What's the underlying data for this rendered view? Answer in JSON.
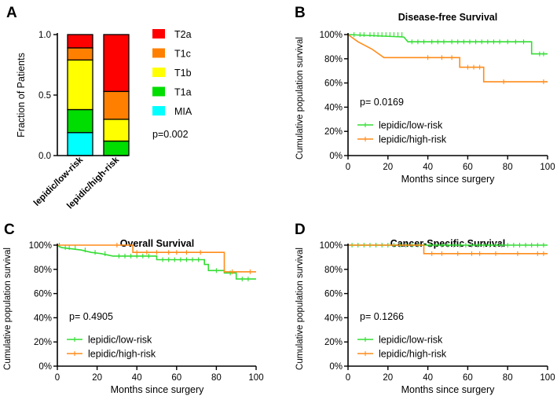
{
  "chart_data": [
    {
      "panel": "A",
      "type": "bar",
      "stacked": true,
      "title": "",
      "xlabel": "",
      "ylabel": "Fraction of Patients",
      "ylim": [
        0,
        1
      ],
      "yticks": [
        "0.0",
        "0.5",
        "1.0"
      ],
      "categories": [
        "lepidic/low-risk",
        "lepidic/high-risk"
      ],
      "series": [
        {
          "name": "MIA",
          "color": "#00ffff",
          "values": [
            0.19,
            0.0
          ]
        },
        {
          "name": "T1a",
          "color": "#00dd00",
          "values": [
            0.19,
            0.12
          ]
        },
        {
          "name": "T1b",
          "color": "#ffff00",
          "values": [
            0.41,
            0.18
          ]
        },
        {
          "name": "T1c",
          "color": "#ff8000",
          "values": [
            0.1,
            0.23
          ]
        },
        {
          "name": "T2a",
          "color": "#ff0000",
          "values": [
            0.11,
            0.47
          ]
        }
      ],
      "legend": [
        "T2a",
        "T1c",
        "T1b",
        "T1a",
        "MIA"
      ],
      "annotation": "p=0.002"
    },
    {
      "panel": "B",
      "type": "line",
      "title": "Disease-free Survival",
      "xlabel": "Months since surgery",
      "ylabel": "Cumulative population survival",
      "xlim": [
        0,
        100
      ],
      "ylim": [
        0,
        100
      ],
      "xticks": [
        "0",
        "20",
        "40",
        "60",
        "80",
        "100"
      ],
      "yticks": [
        "0%",
        "20%",
        "40%",
        "60%",
        "80%",
        "100%"
      ],
      "annotation": "p= 0.0169",
      "series": [
        {
          "name": "lepidic/low-risk",
          "color": "#33dd33",
          "steps": [
            [
              0,
              100
            ],
            [
              28,
              98
            ],
            [
              30,
              94
            ],
            [
              92,
              94
            ],
            [
              92,
              84
            ],
            [
              100,
              84
            ]
          ],
          "censors": [
            [
              3,
              100
            ],
            [
              6,
              100
            ],
            [
              8,
              100
            ],
            [
              11,
              100
            ],
            [
              13,
              100
            ],
            [
              15,
              100
            ],
            [
              17,
              100
            ],
            [
              19,
              100
            ],
            [
              21,
              100
            ],
            [
              23,
              100
            ],
            [
              25,
              100
            ],
            [
              27,
              100
            ],
            [
              32,
              94
            ],
            [
              35,
              94
            ],
            [
              38,
              94
            ],
            [
              42,
              94
            ],
            [
              45,
              94
            ],
            [
              48,
              94
            ],
            [
              52,
              94
            ],
            [
              55,
              94
            ],
            [
              58,
              94
            ],
            [
              61,
              94
            ],
            [
              64,
              94
            ],
            [
              67,
              94
            ],
            [
              70,
              94
            ],
            [
              73,
              94
            ],
            [
              76,
              94
            ],
            [
              80,
              94
            ],
            [
              84,
              94
            ],
            [
              88,
              94
            ],
            [
              96,
              84
            ],
            [
              98,
              84
            ]
          ]
        },
        {
          "name": "lepidic/high-risk",
          "color": "#ff8c1a",
          "steps": [
            [
              0,
              100
            ],
            [
              5,
              94
            ],
            [
              12,
              88
            ],
            [
              18,
              81
            ],
            [
              56,
              81
            ],
            [
              56,
              73
            ],
            [
              68,
              73
            ],
            [
              68,
              61
            ],
            [
              100,
              61
            ]
          ],
          "censors": [
            [
              40,
              81
            ],
            [
              47,
              81
            ],
            [
              52,
              81
            ],
            [
              60,
              73
            ],
            [
              63,
              73
            ],
            [
              66,
              73
            ],
            [
              78,
              61
            ],
            [
              98,
              61
            ]
          ]
        }
      ]
    },
    {
      "panel": "C",
      "type": "line",
      "title": "Overall Survival",
      "xlabel": "Months since surgery",
      "ylabel": "Cumulative population survival",
      "xlim": [
        0,
        100
      ],
      "ylim": [
        0,
        100
      ],
      "xticks": [
        "0",
        "20",
        "40",
        "60",
        "80",
        "100"
      ],
      "yticks": [
        "0%",
        "20%",
        "40%",
        "60%",
        "80%",
        "100%"
      ],
      "annotation": "p= 0.4905",
      "series": [
        {
          "name": "lepidic/low-risk",
          "color": "#33dd33",
          "steps": [
            [
              0,
              100
            ],
            [
              2,
              98
            ],
            [
              12,
              96
            ],
            [
              17,
              94
            ],
            [
              22,
              93
            ],
            [
              28,
              91
            ],
            [
              50,
              91
            ],
            [
              50,
              88
            ],
            [
              74,
              88
            ],
            [
              74,
              84
            ],
            [
              76,
              84
            ],
            [
              76,
              79
            ],
            [
              84,
              79
            ],
            [
              84,
              77
            ],
            [
              90,
              77
            ],
            [
              90,
              72
            ],
            [
              100,
              72
            ]
          ],
          "censors": [
            [
              1,
              100
            ],
            [
              4,
              98
            ],
            [
              6,
              98
            ],
            [
              9,
              98
            ],
            [
              14,
              96
            ],
            [
              19,
              94
            ],
            [
              24,
              93
            ],
            [
              31,
              91
            ],
            [
              34,
              91
            ],
            [
              37,
              91
            ],
            [
              40,
              91
            ],
            [
              43,
              91
            ],
            [
              46,
              91
            ],
            [
              53,
              88
            ],
            [
              56,
              88
            ],
            [
              59,
              88
            ],
            [
              62,
              88
            ],
            [
              65,
              88
            ],
            [
              68,
              88
            ],
            [
              71,
              88
            ],
            [
              80,
              79
            ],
            [
              87,
              77
            ],
            [
              93,
              72
            ],
            [
              96,
              72
            ]
          ]
        },
        {
          "name": "lepidic/high-risk",
          "color": "#ff8c1a",
          "steps": [
            [
              0,
              100
            ],
            [
              38,
              100
            ],
            [
              38,
              94
            ],
            [
              84,
              94
            ],
            [
              84,
              78
            ],
            [
              100,
              78
            ]
          ],
          "censors": [
            [
              30,
              100
            ],
            [
              40,
              94
            ],
            [
              45,
              94
            ],
            [
              50,
              94
            ],
            [
              56,
              94
            ],
            [
              60,
              94
            ],
            [
              65,
              94
            ],
            [
              72,
              94
            ],
            [
              88,
              78
            ],
            [
              97,
              78
            ]
          ]
        }
      ]
    },
    {
      "panel": "D",
      "type": "line",
      "title": "Cancer-Specific Survival",
      "xlabel": "Months since surgery",
      "ylabel": "Cumulative population survival",
      "xlim": [
        0,
        100
      ],
      "ylim": [
        0,
        100
      ],
      "xticks": [
        "0",
        "20",
        "40",
        "60",
        "80",
        "100"
      ],
      "yticks": [
        "0%",
        "20%",
        "40%",
        "60%",
        "80%",
        "100%"
      ],
      "annotation": "p= 0.1266",
      "series": [
        {
          "name": "lepidic/low-risk",
          "color": "#33dd33",
          "steps": [
            [
              0,
              100
            ],
            [
              100,
              100
            ]
          ],
          "censors": [
            [
              2,
              100
            ],
            [
              5,
              100
            ],
            [
              8,
              100
            ],
            [
              11,
              100
            ],
            [
              14,
              100
            ],
            [
              17,
              100
            ],
            [
              20,
              100
            ],
            [
              23,
              100
            ],
            [
              26,
              100
            ],
            [
              29,
              100
            ],
            [
              32,
              100
            ],
            [
              35,
              100
            ],
            [
              38,
              100
            ],
            [
              41,
              100
            ],
            [
              44,
              100
            ],
            [
              47,
              100
            ],
            [
              50,
              100
            ],
            [
              53,
              100
            ],
            [
              56,
              100
            ],
            [
              59,
              100
            ],
            [
              62,
              100
            ],
            [
              65,
              100
            ],
            [
              68,
              100
            ],
            [
              71,
              100
            ],
            [
              74,
              100
            ],
            [
              77,
              100
            ],
            [
              80,
              100
            ],
            [
              83,
              100
            ],
            [
              86,
              100
            ],
            [
              89,
              100
            ],
            [
              92,
              100
            ],
            [
              95,
              100
            ],
            [
              98,
              100
            ]
          ]
        },
        {
          "name": "lepidic/high-risk",
          "color": "#ff8c1a",
          "steps": [
            [
              0,
              100
            ],
            [
              38,
              100
            ],
            [
              38,
              93
            ],
            [
              100,
              93
            ]
          ],
          "censors": [
            [
              42,
              93
            ],
            [
              47,
              93
            ],
            [
              55,
              93
            ],
            [
              62,
              93
            ],
            [
              66,
              93
            ],
            [
              74,
              93
            ],
            [
              85,
              93
            ],
            [
              95,
              93
            ],
            [
              98,
              93
            ]
          ]
        }
      ]
    }
  ]
}
